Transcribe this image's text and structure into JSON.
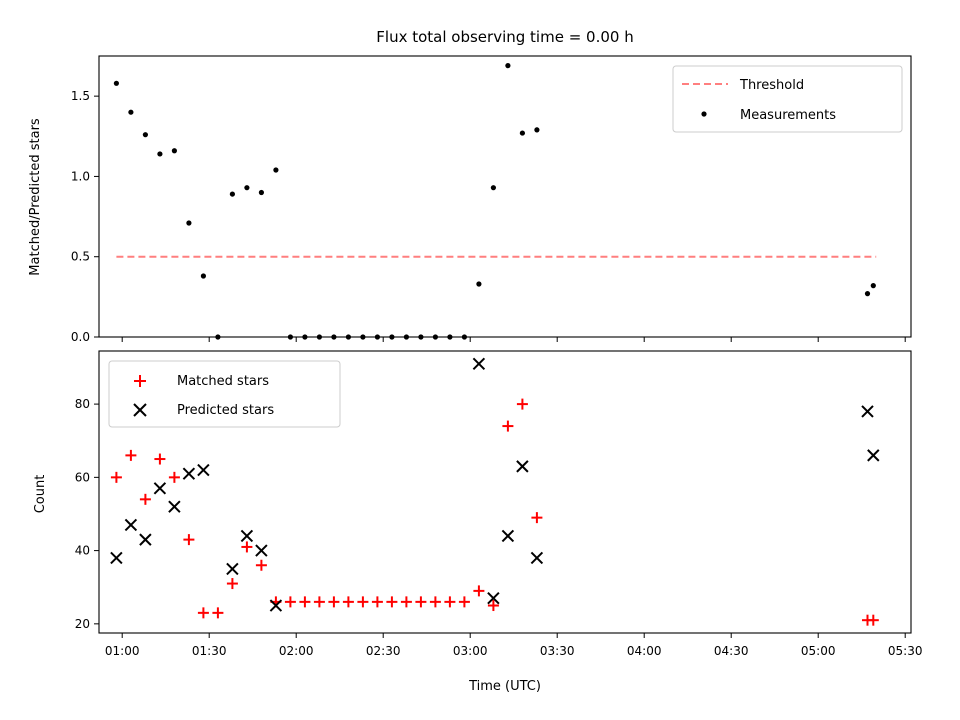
{
  "chart_data": [
    {
      "type": "scatter",
      "title": "Flux total observing time = 0.00 h",
      "xlabel": "",
      "ylabel": "Matched/Predicted stars",
      "xlim": [
        "00:52",
        "05:32"
      ],
      "ylim": [
        0,
        1.75
      ],
      "x_ticks": [
        "01:00",
        "01:30",
        "02:00",
        "02:30",
        "03:00",
        "03:30",
        "04:00",
        "04:30",
        "05:00",
        "05:30"
      ],
      "y_ticks": [
        0.0,
        0.5,
        1.0,
        1.5
      ],
      "y_tick_labels": [
        "0.0",
        "0.5",
        "1.0",
        "1.5"
      ],
      "legend_position": "upper right",
      "legend": [
        "Threshold",
        "Measurements"
      ],
      "lines": [
        {
          "name": "Threshold",
          "color": "#ff7f7f",
          "style": "dashed",
          "x": [
            "00:58",
            "05:20"
          ],
          "values": [
            0.5,
            0.5
          ]
        }
      ],
      "series": [
        {
          "name": "Measurements",
          "color": "#000000",
          "marker": "dot",
          "x": [
            "00:58",
            "01:03",
            "01:08",
            "01:13",
            "01:18",
            "01:23",
            "01:28",
            "01:33",
            "01:38",
            "01:43",
            "01:48",
            "01:53",
            "01:58",
            "02:03",
            "02:08",
            "02:13",
            "02:18",
            "02:23",
            "02:28",
            "02:33",
            "02:38",
            "02:43",
            "02:48",
            "02:53",
            "02:58",
            "03:03",
            "03:08",
            "03:13",
            "03:18",
            "03:23",
            "05:17",
            "05:19"
          ],
          "values": [
            1.58,
            1.4,
            1.26,
            1.14,
            1.16,
            0.71,
            0.38,
            0.0,
            0.89,
            0.93,
            0.9,
            1.04,
            0.0,
            0.0,
            0.0,
            0.0,
            0.0,
            0.0,
            0.0,
            0.0,
            0.0,
            0.0,
            0.0,
            0.0,
            0.0,
            0.33,
            0.93,
            1.69,
            1.27,
            1.29,
            0.27,
            0.32
          ]
        }
      ]
    },
    {
      "type": "scatter",
      "title": "",
      "xlabel": "Time (UTC)",
      "ylabel": "Count",
      "xlim": [
        "00:52",
        "05:32"
      ],
      "ylim": [
        17.5,
        94.5
      ],
      "x_ticks": [
        "01:00",
        "01:30",
        "02:00",
        "02:30",
        "03:00",
        "03:30",
        "04:00",
        "04:30",
        "05:00",
        "05:30"
      ],
      "y_ticks": [
        20,
        40,
        60,
        80
      ],
      "y_tick_labels": [
        "20",
        "40",
        "60",
        "80"
      ],
      "legend_position": "upper left",
      "legend": [
        "Matched stars",
        "Predicted stars"
      ],
      "series": [
        {
          "name": "Matched stars",
          "color": "#ff0000",
          "marker": "plus",
          "x": [
            "00:58",
            "01:03",
            "01:08",
            "01:13",
            "01:18",
            "01:23",
            "01:28",
            "01:33",
            "01:38",
            "01:43",
            "01:48",
            "01:53",
            "01:58",
            "02:03",
            "02:08",
            "02:13",
            "02:18",
            "02:23",
            "02:28",
            "02:33",
            "02:38",
            "02:43",
            "02:48",
            "02:53",
            "02:58",
            "03:03",
            "03:08",
            "03:13",
            "03:18",
            "03:23",
            "05:17",
            "05:19"
          ],
          "values": [
            60,
            66,
            54,
            65,
            60,
            43,
            23,
            23,
            31,
            41,
            36,
            26,
            26,
            26,
            26,
            26,
            26,
            26,
            26,
            26,
            26,
            26,
            26,
            26,
            26,
            29,
            25,
            74,
            80,
            49,
            21,
            21
          ]
        },
        {
          "name": "Predicted stars",
          "color": "#000000",
          "marker": "x",
          "x": [
            "00:58",
            "01:03",
            "01:08",
            "01:13",
            "01:18",
            "01:23",
            "01:28",
            "01:38",
            "01:43",
            "01:48",
            "01:53",
            "03:03",
            "03:08",
            "03:13",
            "03:18",
            "03:23",
            "05:17",
            "05:19"
          ],
          "values": [
            38,
            47,
            43,
            57,
            52,
            61,
            62,
            35,
            44,
            40,
            25,
            91,
            27,
            44,
            63,
            38,
            78,
            66
          ]
        }
      ]
    }
  ]
}
